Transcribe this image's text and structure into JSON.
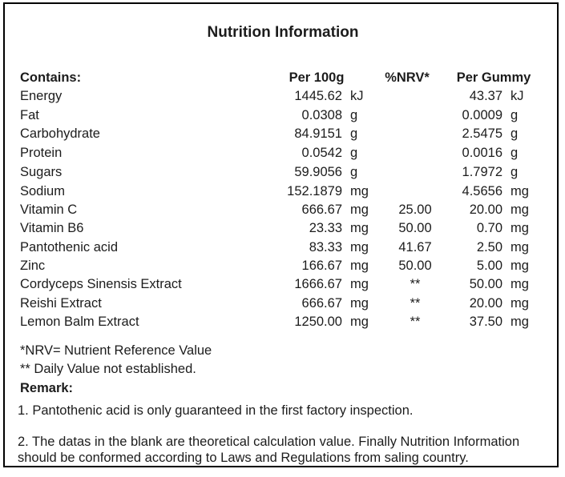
{
  "title": "Nutrition Information",
  "table": {
    "headers": {
      "contains": "Contains:",
      "per_100g": "Per 100g",
      "nrv": "%NRV*",
      "per_gummy": "Per Gummy"
    },
    "rows": [
      {
        "name": "Energy",
        "v100": "1445.62",
        "u100": "kJ",
        "nrv": "",
        "vg": "43.37",
        "ug": "kJ"
      },
      {
        "name": "Fat",
        "v100": "0.0308",
        "u100": "g",
        "nrv": "",
        "vg": "0.0009",
        "ug": "g"
      },
      {
        "name": "Carbohydrate",
        "v100": "84.9151",
        "u100": "g",
        "nrv": "",
        "vg": "2.5475",
        "ug": "g"
      },
      {
        "name": "Protein",
        "v100": "0.0542",
        "u100": "g",
        "nrv": "",
        "vg": "0.0016",
        "ug": "g"
      },
      {
        "name": "Sugars",
        "v100": "59.9056",
        "u100": "g",
        "nrv": "",
        "vg": "1.7972",
        "ug": "g"
      },
      {
        "name": "Sodium",
        "v100": "152.1879",
        "u100": "mg",
        "nrv": "",
        "vg": "4.5656",
        "ug": "mg"
      },
      {
        "name": "Vitamin C",
        "v100": "666.67",
        "u100": "mg",
        "nrv": "25.00",
        "vg": "20.00",
        "ug": "mg"
      },
      {
        "name": "Vitamin B6",
        "v100": "23.33",
        "u100": "mg",
        "nrv": "50.00",
        "vg": "0.70",
        "ug": "mg"
      },
      {
        "name": "Pantothenic acid",
        "v100": "83.33",
        "u100": "mg",
        "nrv": "41.67",
        "vg": "2.50",
        "ug": "mg"
      },
      {
        "name": "Zinc",
        "v100": "166.67",
        "u100": "mg",
        "nrv": "50.00",
        "vg": "5.00",
        "ug": "mg"
      },
      {
        "name": "Cordyceps Sinensis Extract",
        "v100": "1666.67",
        "u100": "mg",
        "nrv": "**",
        "vg": "50.00",
        "ug": "mg"
      },
      {
        "name": "Reishi Extract",
        "v100": "666.67",
        "u100": "mg",
        "nrv": "**",
        "vg": "20.00",
        "ug": "mg"
      },
      {
        "name": "Lemon Balm Extract",
        "v100": "1250.00",
        "u100": "mg",
        "nrv": "**",
        "vg": "37.50",
        "ug": "mg"
      }
    ]
  },
  "footnotes": {
    "nrv_note": "*NRV= Nutrient Reference Value",
    "daily_value_note": "** Daily Value not established."
  },
  "remark": {
    "label": "Remark:",
    "item1": "1. Pantothenic acid is only guaranteed in the first factory inspection.",
    "item2_line1": "2. The datas in the blank are theoretical calculation value. Finally Nutrition Information",
    "item2_line2": "should be conformed according to Laws and Regulations from saling country."
  },
  "colors": {
    "text": "#1c1c1c",
    "border": "#000000",
    "background": "#ffffff"
  }
}
